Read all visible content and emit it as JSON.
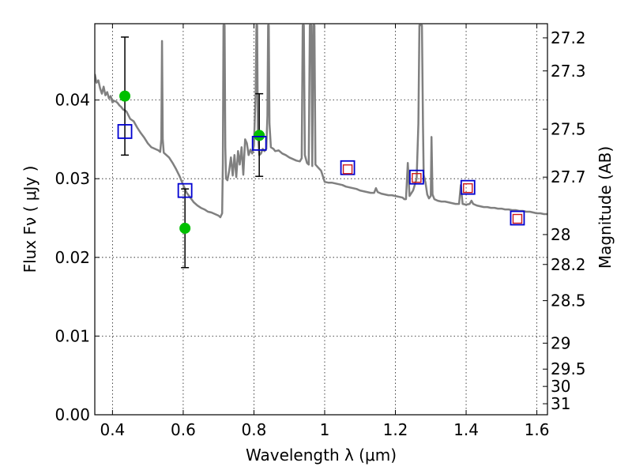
{
  "chart_data": {
    "type": "scatter",
    "xlabel": "Wavelength  λ (μm)",
    "ylabel": "Flux  Fν  ( μJy )",
    "y2label": "Magnitude (AB)",
    "xlim": [
      0.35,
      1.63
    ],
    "ylim": [
      0.0,
      0.0497
    ],
    "x_ticks": [
      0.4,
      0.6,
      0.8,
      1.0,
      1.2,
      1.4,
      1.6
    ],
    "x_tick_labels": [
      "0.4",
      "0.6",
      "0.8",
      "1",
      "1.2",
      "1.4",
      "1.6"
    ],
    "y_ticks": [
      0.0,
      0.01,
      0.02,
      0.03,
      0.04
    ],
    "y_tick_labels": [
      "0.00",
      "0.01",
      "0.02",
      "0.03",
      "0.04"
    ],
    "y2_ticks": [
      {
        "label": "27.2",
        "flux": 0.0479
      },
      {
        "label": "27.3",
        "flux": 0.0437
      },
      {
        "label": "27.5",
        "flux": 0.0363
      },
      {
        "label": "27.7",
        "flux": 0.0302
      },
      {
        "label": "28",
        "flux": 0.0229
      },
      {
        "label": "28.2",
        "flux": 0.0191
      },
      {
        "label": "28.5",
        "flux": 0.0145
      },
      {
        "label": "29",
        "flux": 0.0091
      },
      {
        "label": "29.5",
        "flux": 0.0058
      },
      {
        "label": "30",
        "flux": 0.0036
      },
      {
        "label": "31",
        "flux": 0.0014
      }
    ],
    "grid": true,
    "series": [
      {
        "kind": "line",
        "color": "#808080",
        "points": [
          [
            0.35,
            0.0433
          ],
          [
            0.355,
            0.0422
          ],
          [
            0.36,
            0.0425
          ],
          [
            0.365,
            0.0415
          ],
          [
            0.37,
            0.0408
          ],
          [
            0.375,
            0.0417
          ],
          [
            0.38,
            0.0406
          ],
          [
            0.385,
            0.041
          ],
          [
            0.39,
            0.0402
          ],
          [
            0.395,
            0.0405
          ],
          [
            0.4,
            0.0397
          ],
          [
            0.405,
            0.0399
          ],
          [
            0.41,
            0.0398
          ],
          [
            0.415,
            0.0396
          ],
          [
            0.42,
            0.0393
          ],
          [
            0.425,
            0.0391
          ],
          [
            0.43,
            0.0388
          ],
          [
            0.435,
            0.0387
          ],
          [
            0.44,
            0.0385
          ],
          [
            0.45,
            0.0376
          ],
          [
            0.46,
            0.0373
          ],
          [
            0.47,
            0.0365
          ],
          [
            0.48,
            0.0358
          ],
          [
            0.49,
            0.0352
          ],
          [
            0.5,
            0.0345
          ],
          [
            0.51,
            0.034
          ],
          [
            0.52,
            0.0338
          ],
          [
            0.53,
            0.0336
          ],
          [
            0.535,
            0.0334
          ],
          [
            0.538,
            0.035
          ],
          [
            0.54,
            0.0475
          ],
          [
            0.542,
            0.035
          ],
          [
            0.545,
            0.0333
          ],
          [
            0.56,
            0.0327
          ],
          [
            0.57,
            0.032
          ],
          [
            0.58,
            0.0312
          ],
          [
            0.59,
            0.0303
          ],
          [
            0.6,
            0.0292
          ],
          [
            0.61,
            0.0282
          ],
          [
            0.62,
            0.0276
          ],
          [
            0.63,
            0.027
          ],
          [
            0.64,
            0.0266
          ],
          [
            0.65,
            0.0263
          ],
          [
            0.66,
            0.0261
          ],
          [
            0.67,
            0.0258
          ],
          [
            0.68,
            0.0257
          ],
          [
            0.69,
            0.0255
          ],
          [
            0.7,
            0.0253
          ],
          [
            0.705,
            0.0251
          ],
          [
            0.71,
            0.0256
          ],
          [
            0.712,
            0.032
          ],
          [
            0.714,
            0.0495
          ],
          [
            0.717,
            0.0495
          ],
          [
            0.719,
            0.034
          ],
          [
            0.721,
            0.03
          ],
          [
            0.725,
            0.0298
          ],
          [
            0.73,
            0.031
          ],
          [
            0.735,
            0.0327
          ],
          [
            0.74,
            0.0304
          ],
          [
            0.745,
            0.033
          ],
          [
            0.75,
            0.0302
          ],
          [
            0.755,
            0.0335
          ],
          [
            0.76,
            0.0318
          ],
          [
            0.765,
            0.034
          ],
          [
            0.77,
            0.0305
          ],
          [
            0.775,
            0.035
          ],
          [
            0.78,
            0.0345
          ],
          [
            0.785,
            0.033
          ],
          [
            0.79,
            0.0337
          ],
          [
            0.795,
            0.0332
          ],
          [
            0.8,
            0.0342
          ],
          [
            0.805,
            0.041
          ],
          [
            0.807,
            0.0495
          ],
          [
            0.809,
            0.0495
          ],
          [
            0.811,
            0.036
          ],
          [
            0.815,
            0.033
          ],
          [
            0.82,
            0.0332
          ],
          [
            0.825,
            0.0338
          ],
          [
            0.83,
            0.0335
          ],
          [
            0.835,
            0.0338
          ],
          [
            0.838,
            0.038
          ],
          [
            0.84,
            0.0495
          ],
          [
            0.842,
            0.0495
          ],
          [
            0.844,
            0.037
          ],
          [
            0.848,
            0.034
          ],
          [
            0.855,
            0.0338
          ],
          [
            0.86,
            0.0335
          ],
          [
            0.87,
            0.0336
          ],
          [
            0.88,
            0.0332
          ],
          [
            0.89,
            0.033
          ],
          [
            0.9,
            0.0327
          ],
          [
            0.91,
            0.0325
          ],
          [
            0.92,
            0.0323
          ],
          [
            0.93,
            0.0322
          ],
          [
            0.935,
            0.0326
          ],
          [
            0.938,
            0.0495
          ],
          [
            0.941,
            0.0495
          ],
          [
            0.944,
            0.033
          ],
          [
            0.95,
            0.032
          ],
          [
            0.955,
            0.0318
          ],
          [
            0.958,
            0.0495
          ],
          [
            0.962,
            0.0495
          ],
          [
            0.965,
            0.0316
          ],
          [
            0.968,
            0.0495
          ],
          [
            0.971,
            0.0495
          ],
          [
            0.974,
            0.0318
          ],
          [
            0.98,
            0.0315
          ],
          [
            0.99,
            0.031
          ],
          [
            1.0,
            0.0296
          ],
          [
            1.01,
            0.0295
          ],
          [
            1.02,
            0.0295
          ],
          [
            1.03,
            0.0294
          ],
          [
            1.04,
            0.0293
          ],
          [
            1.05,
            0.0292
          ],
          [
            1.06,
            0.029
          ],
          [
            1.07,
            0.0289
          ],
          [
            1.08,
            0.0288
          ],
          [
            1.09,
            0.0287
          ],
          [
            1.1,
            0.0285
          ],
          [
            1.11,
            0.0284
          ],
          [
            1.12,
            0.0283
          ],
          [
            1.13,
            0.0282
          ],
          [
            1.14,
            0.0282
          ],
          [
            1.145,
            0.0288
          ],
          [
            1.15,
            0.0283
          ],
          [
            1.16,
            0.0281
          ],
          [
            1.17,
            0.028
          ],
          [
            1.18,
            0.0279
          ],
          [
            1.19,
            0.0279
          ],
          [
            1.2,
            0.0278
          ],
          [
            1.21,
            0.0277
          ],
          [
            1.22,
            0.0276
          ],
          [
            1.225,
            0.0274
          ],
          [
            1.23,
            0.0274
          ],
          [
            1.235,
            0.032
          ],
          [
            1.24,
            0.0278
          ],
          [
            1.25,
            0.0285
          ],
          [
            1.26,
            0.03
          ],
          [
            1.265,
            0.037
          ],
          [
            1.268,
            0.0495
          ],
          [
            1.275,
            0.0495
          ],
          [
            1.278,
            0.037
          ],
          [
            1.28,
            0.0305
          ],
          [
            1.285,
            0.0295
          ],
          [
            1.29,
            0.028
          ],
          [
            1.295,
            0.0275
          ],
          [
            1.3,
            0.0278
          ],
          [
            1.302,
            0.0353
          ],
          [
            1.305,
            0.028
          ],
          [
            1.31,
            0.0274
          ],
          [
            1.32,
            0.0272
          ],
          [
            1.33,
            0.0271
          ],
          [
            1.34,
            0.0271
          ],
          [
            1.35,
            0.027
          ],
          [
            1.36,
            0.0269
          ],
          [
            1.37,
            0.0268
          ],
          [
            1.38,
            0.0268
          ],
          [
            1.385,
            0.0292
          ],
          [
            1.39,
            0.0268
          ],
          [
            1.4,
            0.0267
          ],
          [
            1.41,
            0.0268
          ],
          [
            1.415,
            0.0272
          ],
          [
            1.42,
            0.0268
          ],
          [
            1.43,
            0.0266
          ],
          [
            1.44,
            0.0265
          ],
          [
            1.45,
            0.0264
          ],
          [
            1.46,
            0.0264
          ],
          [
            1.47,
            0.0263
          ],
          [
            1.48,
            0.0263
          ],
          [
            1.49,
            0.0262
          ],
          [
            1.5,
            0.0262
          ],
          [
            1.51,
            0.0261
          ],
          [
            1.52,
            0.0261
          ],
          [
            1.53,
            0.026
          ],
          [
            1.54,
            0.026
          ],
          [
            1.55,
            0.0259
          ],
          [
            1.56,
            0.0259
          ],
          [
            1.57,
            0.0258
          ],
          [
            1.58,
            0.0258
          ],
          [
            1.59,
            0.0257
          ],
          [
            1.6,
            0.0256
          ],
          [
            1.61,
            0.0256
          ],
          [
            1.62,
            0.0255
          ],
          [
            1.63,
            0.0255
          ]
        ]
      },
      {
        "kind": "points",
        "marker": "circle",
        "color": "#00c000",
        "points": [
          {
            "x": 0.435,
            "y": 0.0405,
            "err_low": 0.033,
            "err_high": 0.048
          },
          {
            "x": 0.605,
            "y": 0.0237,
            "err_low": 0.0187,
            "err_high": 0.0287
          },
          {
            "x": 0.815,
            "y": 0.0355,
            "err_low": 0.0303,
            "err_high": 0.0408
          }
        ]
      },
      {
        "kind": "points",
        "marker": "square-open",
        "color": "#0000d0",
        "points": [
          {
            "x": 0.435,
            "y": 0.036
          },
          {
            "x": 0.605,
            "y": 0.0285
          },
          {
            "x": 0.815,
            "y": 0.0345
          },
          {
            "x": 1.065,
            "y": 0.0314
          },
          {
            "x": 1.26,
            "y": 0.0302
          },
          {
            "x": 1.405,
            "y": 0.0289
          },
          {
            "x": 1.545,
            "y": 0.025
          }
        ]
      },
      {
        "kind": "points",
        "marker": "square-open-small",
        "color": "#d01818",
        "points": [
          {
            "x": 1.065,
            "y": 0.0312
          },
          {
            "x": 1.26,
            "y": 0.0301
          },
          {
            "x": 1.405,
            "y": 0.0288
          },
          {
            "x": 1.545,
            "y": 0.0249
          }
        ]
      }
    ]
  }
}
